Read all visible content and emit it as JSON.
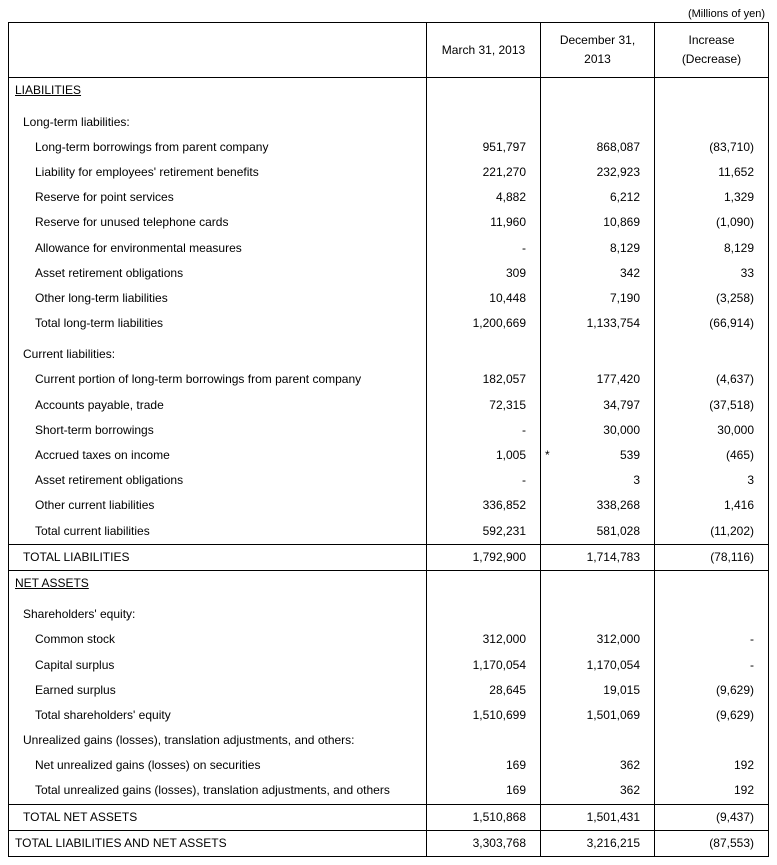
{
  "unit": "(Millions of yen)",
  "headers": {
    "c1": "March 31, 2013",
    "c2": "December 31, 2013",
    "c3_line1": "Increase",
    "c3_line2": "(Decrease)"
  },
  "sections": {
    "liabilities": {
      "title": "LIABILITIES",
      "long_term": {
        "heading": "Long-term liabilities:",
        "rows": [
          {
            "label": "Long-term borrowings from parent company",
            "v1": "951,797",
            "v2": "868,087",
            "v3": "(83,710)"
          },
          {
            "label": "Liability for employees' retirement benefits",
            "v1": "221,270",
            "v2": "232,923",
            "v3": "11,652"
          },
          {
            "label": "Reserve for point services",
            "v1": "4,882",
            "v2": "6,212",
            "v3": "1,329"
          },
          {
            "label": "Reserve for unused telephone cards",
            "v1": "11,960",
            "v2": "10,869",
            "v3": "(1,090)"
          },
          {
            "label": "Allowance for environmental measures",
            "v1": "-",
            "v2": "8,129",
            "v3": "8,129"
          },
          {
            "label": "Asset retirement obligations",
            "v1": "309",
            "v2": "342",
            "v3": "33"
          },
          {
            "label": "Other long-term liabilities",
            "v1": "10,448",
            "v2": "7,190",
            "v3": "(3,258)"
          },
          {
            "label": "Total long-term liabilities",
            "v1": "1,200,669",
            "v2": "1,133,754",
            "v3": "(66,914)"
          }
        ]
      },
      "current": {
        "heading": "Current liabilities:",
        "rows": [
          {
            "label": "Current portion of long-term borrowings from parent company",
            "v1": "182,057",
            "v2": "177,420",
            "v3": "(4,637)"
          },
          {
            "label": "Accounts payable, trade",
            "v1": "72,315",
            "v2": "34,797",
            "v3": "(37,518)"
          },
          {
            "label": "Short-term borrowings",
            "v1": "-",
            "v2": "30,000",
            "v3": "30,000"
          },
          {
            "label": "Accrued taxes on income",
            "v1": "1,005",
            "v2": "539",
            "v3": "(465)",
            "ast2": true
          },
          {
            "label": "Asset retirement obligations",
            "v1": "-",
            "v2": "3",
            "v3": "3"
          },
          {
            "label": "Other current liabilities",
            "v1": "336,852",
            "v2": "338,268",
            "v3": "1,416"
          },
          {
            "label": "Total current liabilities",
            "v1": "592,231",
            "v2": "581,028",
            "v3": "(11,202)"
          }
        ]
      },
      "total": {
        "label": "TOTAL LIABILITIES",
        "v1": "1,792,900",
        "v2": "1,714,783",
        "v3": "(78,116)"
      }
    },
    "net_assets": {
      "title": "NET ASSETS",
      "equity": {
        "heading": "Shareholders' equity:",
        "rows": [
          {
            "label": "Common stock",
            "v1": "312,000",
            "v2": "312,000",
            "v3": "-"
          },
          {
            "label": "Capital surplus",
            "v1": "1,170,054",
            "v2": "1,170,054",
            "v3": "-"
          },
          {
            "label": "Earned surplus",
            "v1": "28,645",
            "v2": "19,015",
            "v3": "(9,629)"
          },
          {
            "label": "Total shareholders' equity",
            "v1": "1,510,699",
            "v2": "1,501,069",
            "v3": "(9,629)"
          }
        ]
      },
      "unrealized": {
        "heading": "Unrealized gains (losses), translation adjustments, and others:",
        "rows": [
          {
            "label": "Net unrealized gains (losses) on securities",
            "v1": "169",
            "v2": "362",
            "v3": "192"
          },
          {
            "label": "Total unrealized gains (losses), translation adjustments, and others",
            "v1": "169",
            "v2": "362",
            "v3": "192"
          }
        ]
      },
      "total": {
        "label": "TOTAL NET ASSETS",
        "v1": "1,510,868",
        "v2": "1,501,431",
        "v3": "(9,437)"
      }
    },
    "grand_total": {
      "label": "TOTAL LIABILITIES AND NET ASSETS",
      "v1": "3,303,768",
      "v2": "3,216,215",
      "v3": "(87,553)"
    }
  }
}
